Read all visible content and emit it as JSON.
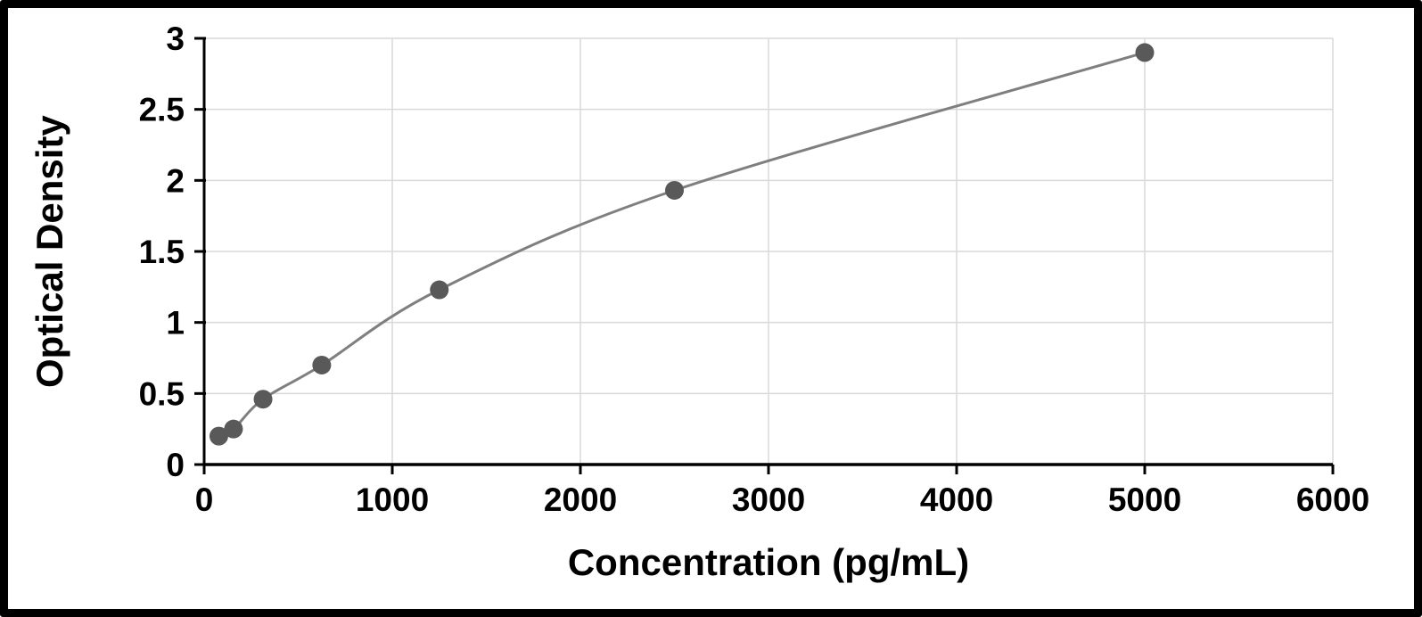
{
  "chart_data": {
    "type": "scatter",
    "title": "",
    "xlabel": "Concentration (pg/mL)",
    "ylabel": "Optical Density",
    "x": [
      78,
      156,
      313,
      625,
      1250,
      2500,
      5000
    ],
    "y": [
      0.2,
      0.25,
      0.46,
      0.7,
      1.23,
      1.93,
      2.9
    ],
    "xlim": [
      0,
      6000
    ],
    "ylim": [
      0,
      3
    ],
    "xticks": [
      0,
      1000,
      2000,
      3000,
      4000,
      5000,
      6000
    ],
    "yticks": [
      0,
      0.5,
      1,
      1.5,
      2,
      2.5,
      3
    ],
    "grid": true,
    "legend": "none",
    "line_style": "smooth-fit-curve",
    "colors": {
      "point": "#595959",
      "line": "#7f7f7f",
      "grid": "#d9d9d9",
      "axis": "#000000",
      "text": "#000000",
      "background": "#ffffff",
      "frame_border": "#000000"
    }
  }
}
